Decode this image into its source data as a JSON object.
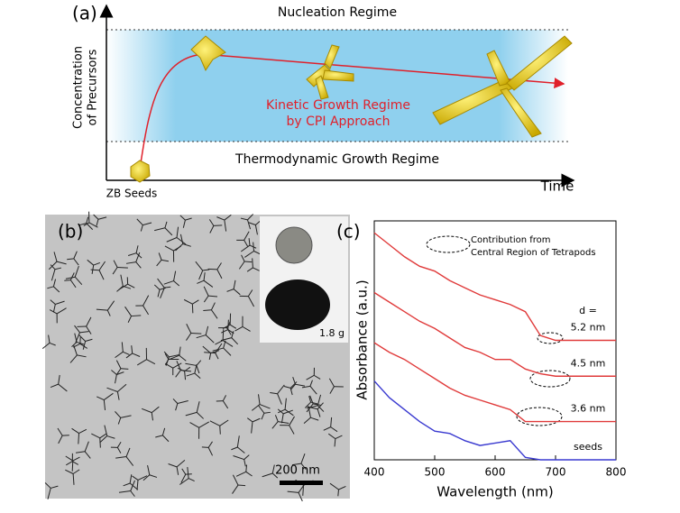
{
  "panel_a": {
    "label": "(a)",
    "nucleation": "Nucleation Regime",
    "y_axis_label": [
      "Concentration",
      "of Precursors"
    ],
    "kinetic": [
      "Kinetic Growth Regime",
      "by CPI Approach"
    ],
    "thermodynamic": "Thermodynamic Growth Regime",
    "seeds": "ZB Seeds",
    "x_axis_label": "Time"
  },
  "panel_b": {
    "label": "(b)",
    "inset_mass": "1.8 g",
    "scale_bar": "200 nm"
  },
  "chart_data": {
    "type": "line",
    "panel_label": "(c)",
    "x_label": "Wavelength (nm)",
    "y_label": "Absorbance (a.u.)",
    "annotation": [
      "Contribution from",
      "Central Region of Tetrapods"
    ],
    "size_prefix": "d =",
    "x": [
      400,
      425,
      450,
      475,
      500,
      525,
      550,
      575,
      600,
      625,
      650,
      675,
      700,
      725,
      750,
      775,
      800
    ],
    "xlim": [
      400,
      800
    ],
    "xticks": [
      400,
      500,
      600,
      700,
      800
    ],
    "ylim": [
      0,
      10
    ],
    "series": [
      {
        "name": "5.2 nm",
        "color": "#e03a3a",
        "values": [
          9.5,
          9.0,
          8.5,
          8.1,
          7.9,
          7.5,
          7.2,
          6.9,
          6.7,
          6.5,
          6.2,
          5.2,
          5.0,
          5.0,
          5.0,
          5.0,
          5.0
        ]
      },
      {
        "name": "4.5 nm",
        "color": "#e03a3a",
        "values": [
          7.0,
          6.6,
          6.2,
          5.8,
          5.5,
          5.1,
          4.7,
          4.5,
          4.2,
          4.2,
          3.8,
          3.6,
          3.5,
          3.5,
          3.5,
          3.5,
          3.5
        ]
      },
      {
        "name": "3.6 nm",
        "color": "#e03a3a",
        "values": [
          4.9,
          4.5,
          4.2,
          3.8,
          3.4,
          3.0,
          2.7,
          2.5,
          2.3,
          2.1,
          1.6,
          1.6,
          1.6,
          1.6,
          1.6,
          1.6,
          1.6
        ]
      },
      {
        "name": "seeds",
        "color": "#3a3ad0",
        "values": [
          3.3,
          2.6,
          2.1,
          1.6,
          1.2,
          1.1,
          0.8,
          0.6,
          0.7,
          0.8,
          0.1,
          0.0,
          0.0,
          0.0,
          0.0,
          0.0,
          0.0
        ]
      }
    ]
  }
}
